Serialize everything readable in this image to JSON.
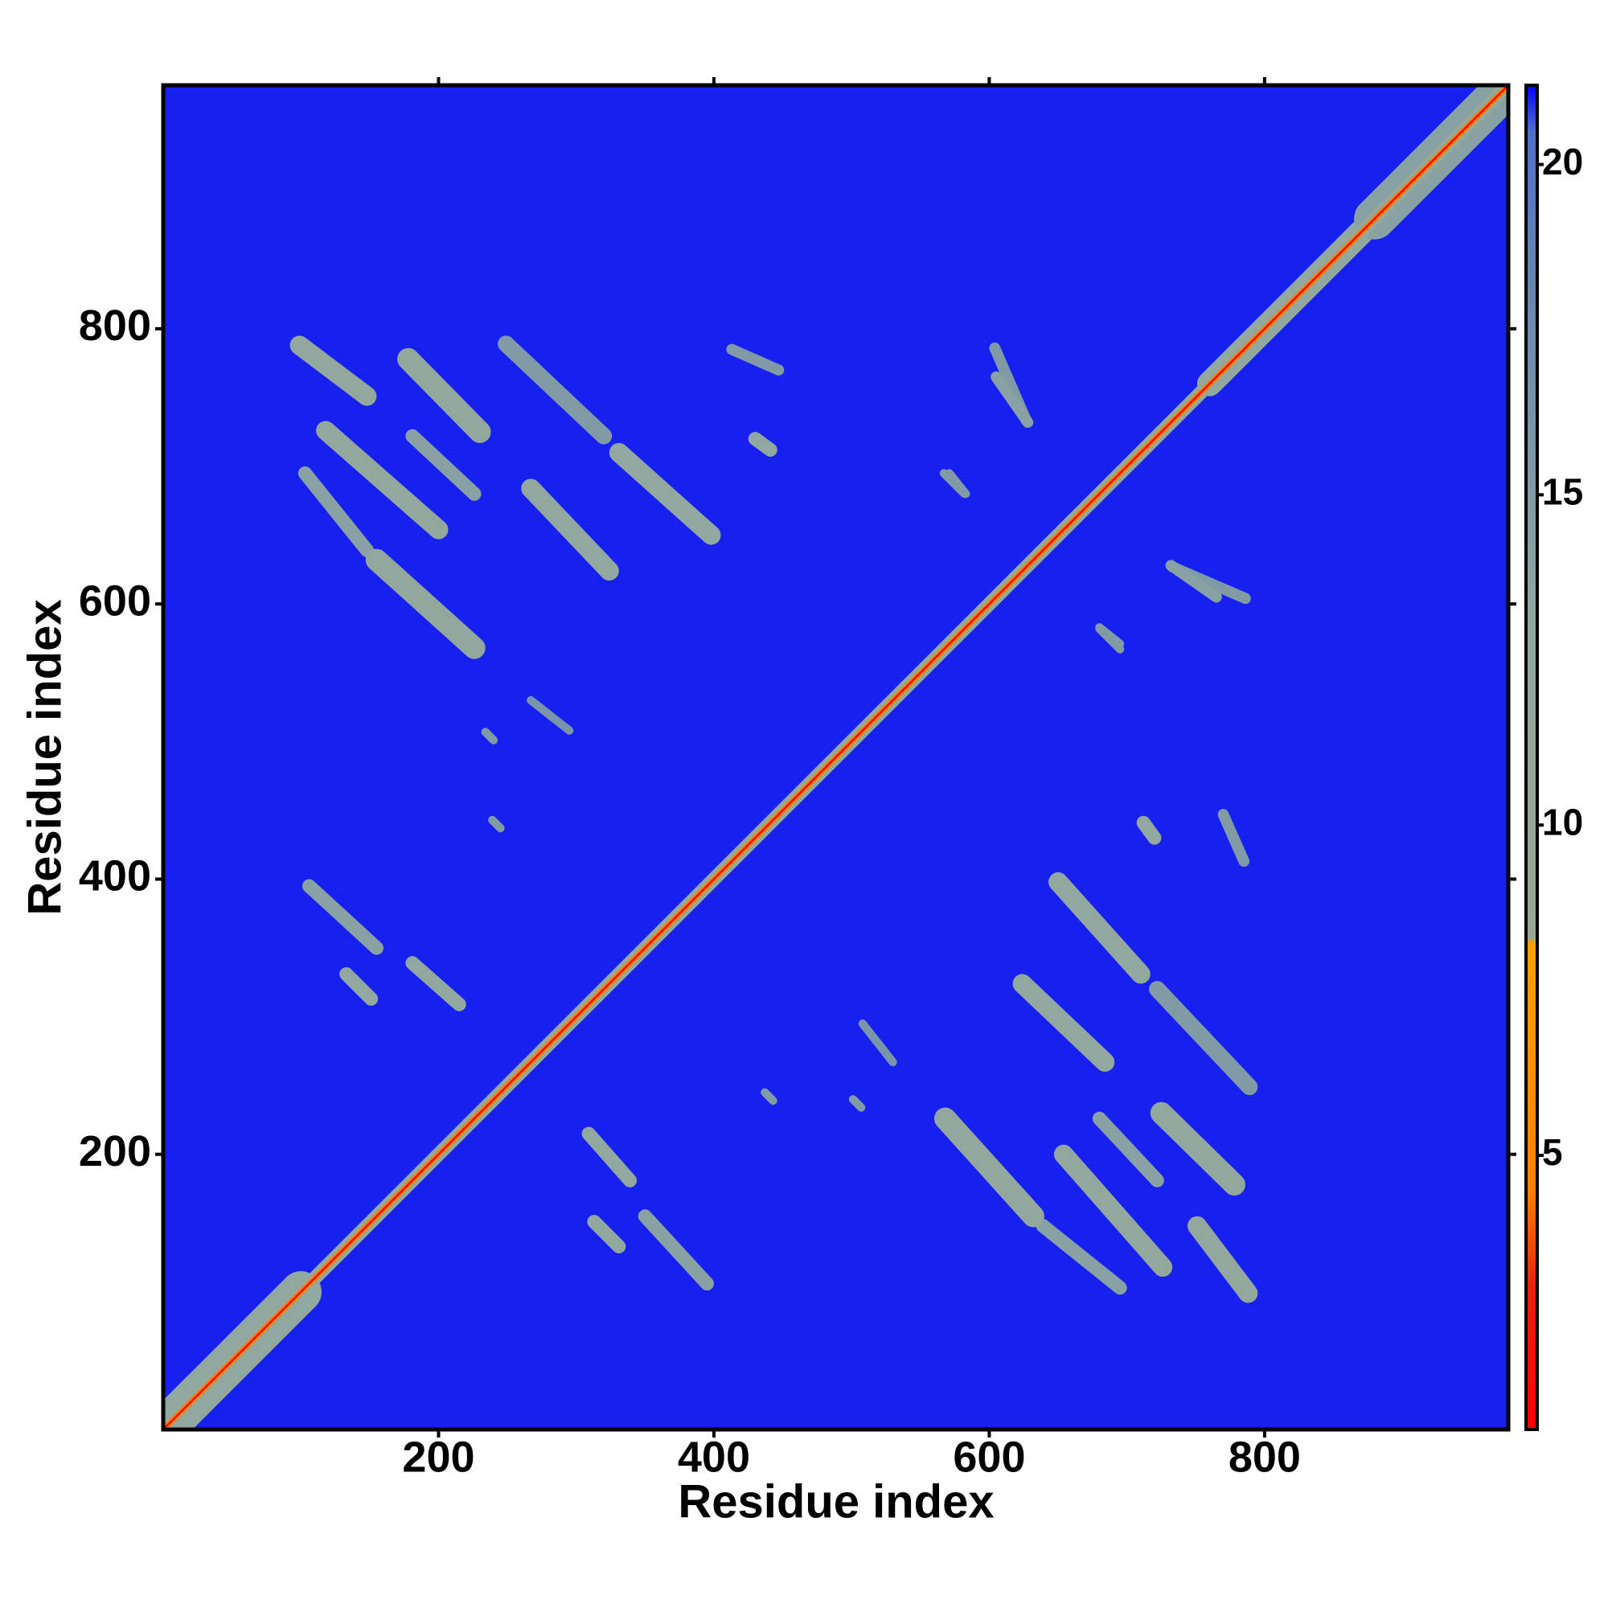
{
  "chart_data": {
    "type": "heatmap",
    "xlabel": "Residue index",
    "ylabel": "Residue index",
    "xlim": [
      0,
      977
    ],
    "ylim": [
      0,
      977
    ],
    "xticks": [
      200,
      400,
      600,
      800
    ],
    "yticks": [
      200,
      400,
      600,
      800
    ],
    "symmetric": true,
    "background_value": 21,
    "colorbar": {
      "lim": [
        0.85,
        21.2
      ],
      "ticks": [
        5,
        10,
        15,
        20
      ],
      "colorscale": [
        [
          0.85,
          "#ff0000"
        ],
        [
          3,
          "#e82010"
        ],
        [
          4.5,
          "#ff8000"
        ],
        [
          8.2,
          "#ffa000"
        ],
        [
          8.3,
          "#98a890"
        ],
        [
          13,
          "#90a8a0"
        ],
        [
          18,
          "#6888b0"
        ],
        [
          20.5,
          "#5070c8"
        ],
        [
          21.2,
          "#0000ff"
        ]
      ]
    },
    "bands": [
      {
        "x": [
          0,
          100
        ],
        "y": [
          0,
          100
        ],
        "value": 13,
        "width": 30
      },
      {
        "x": [
          760,
          880
        ],
        "y": [
          760,
          880
        ],
        "value": 13,
        "width": 18
      },
      {
        "x": [
          880,
          977
        ],
        "y": [
          880,
          977
        ],
        "value": 14,
        "width": 30
      },
      {
        "x": [
          0,
          977
        ],
        "y": [
          0,
          977
        ],
        "value": 12,
        "width": 10
      },
      {
        "x": [
          0,
          977
        ],
        "y": [
          0,
          977
        ],
        "value": 5,
        "width": 4
      },
      {
        "x": [
          0,
          977
        ],
        "y": [
          0,
          977
        ],
        "value": 2,
        "width": 1.5
      },
      {
        "x": [
          99,
          148
        ],
        "y": [
          788,
          751
        ],
        "value": 12,
        "width": 14
      },
      {
        "x": [
          178,
          230
        ],
        "y": [
          778,
          725
        ],
        "value": 12,
        "width": 16
      },
      {
        "x": [
          249,
          320
        ],
        "y": [
          789,
          722
        ],
        "value": 15,
        "width": 12
      },
      {
        "x": [
          331,
          398
        ],
        "y": [
          710,
          650
        ],
        "value": 13,
        "width": 14
      },
      {
        "x": [
          267,
          324
        ],
        "y": [
          684,
          624
        ],
        "value": 13,
        "width": 14
      },
      {
        "x": [
          118,
          200
        ],
        "y": [
          726,
          654
        ],
        "value": 12,
        "width": 14
      },
      {
        "x": [
          103,
          148
        ],
        "y": [
          695,
          639
        ],
        "value": 14,
        "width": 10
      },
      {
        "x": [
          155,
          226
        ],
        "y": [
          632,
          568
        ],
        "value": 12,
        "width": 16
      },
      {
        "x": [
          181,
          226
        ],
        "y": [
          722,
          680
        ],
        "value": 14,
        "width": 10
      },
      {
        "x": [
          430,
          441
        ],
        "y": [
          720,
          712
        ],
        "value": 13,
        "width": 10
      },
      {
        "x": [
          413,
          447
        ],
        "y": [
          785,
          770
        ],
        "value": 15,
        "width": 8
      },
      {
        "x": [
          604,
          627
        ],
        "y": [
          786,
          733
        ],
        "value": 15,
        "width": 8
      },
      {
        "x": [
          732,
          765
        ],
        "y": [
          628,
          605
        ],
        "value": 14,
        "width": 8
      },
      {
        "x": [
          567,
          582
        ],
        "y": [
          695,
          680
        ],
        "value": 15,
        "width": 6
      },
      {
        "x": [
          680,
          695
        ],
        "y": [
          583,
          571
        ],
        "value": 15,
        "width": 6
      },
      {
        "x": [
          106,
          155
        ],
        "y": [
          395,
          350
        ],
        "value": 14,
        "width": 10
      },
      {
        "x": [
          133,
          151
        ],
        "y": [
          331,
          313
        ],
        "value": 13,
        "width": 10
      },
      {
        "x": [
          181,
          215
        ],
        "y": [
          339,
          309
        ],
        "value": 13,
        "width": 10
      },
      {
        "x": [
          239,
          245
        ],
        "y": [
          443,
          437
        ],
        "value": 15,
        "width": 6
      },
      {
        "x": [
          234,
          240
        ],
        "y": [
          507,
          501
        ],
        "value": 15,
        "width": 6
      },
      {
        "x": [
          267,
          295
        ],
        "y": [
          530,
          508
        ],
        "value": 16,
        "width": 6
      }
    ]
  }
}
